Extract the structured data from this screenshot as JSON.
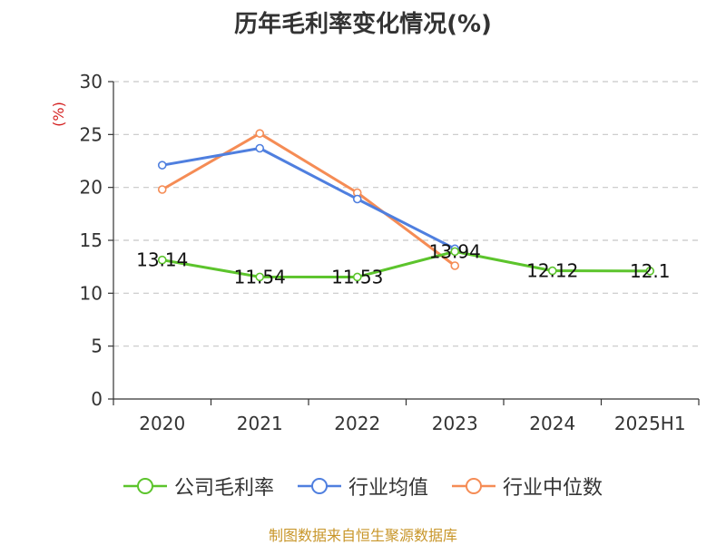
{
  "chart_data": {
    "type": "line",
    "title": "历年毛利率变化情况(%)",
    "ylabel": "(%)",
    "categories": [
      "2020",
      "2021",
      "2022",
      "2023",
      "2024",
      "2025H1"
    ],
    "ylim": [
      0,
      30
    ],
    "yticks": [
      0,
      5,
      10,
      15,
      20,
      25,
      30
    ],
    "grid": "horizontal-dashed",
    "legend_position": "bottom",
    "series": [
      {
        "name": "公司毛利率",
        "color": "#5cc42c",
        "values": [
          13.14,
          11.54,
          11.53,
          13.94,
          12.12,
          12.1
        ],
        "labels": [
          "13.14",
          "11.54",
          "11.53",
          "13.94",
          "12.12",
          "12.1"
        ]
      },
      {
        "name": "行业均值",
        "color": "#4f7fdf",
        "values": [
          22.1,
          23.7,
          18.9,
          14.2,
          null,
          null
        ]
      },
      {
        "name": "行业中位数",
        "color": "#f58c55",
        "values": [
          19.8,
          25.1,
          19.5,
          12.6,
          null,
          null
        ]
      }
    ]
  },
  "footer": "制图数据来自恒生聚源数据库"
}
